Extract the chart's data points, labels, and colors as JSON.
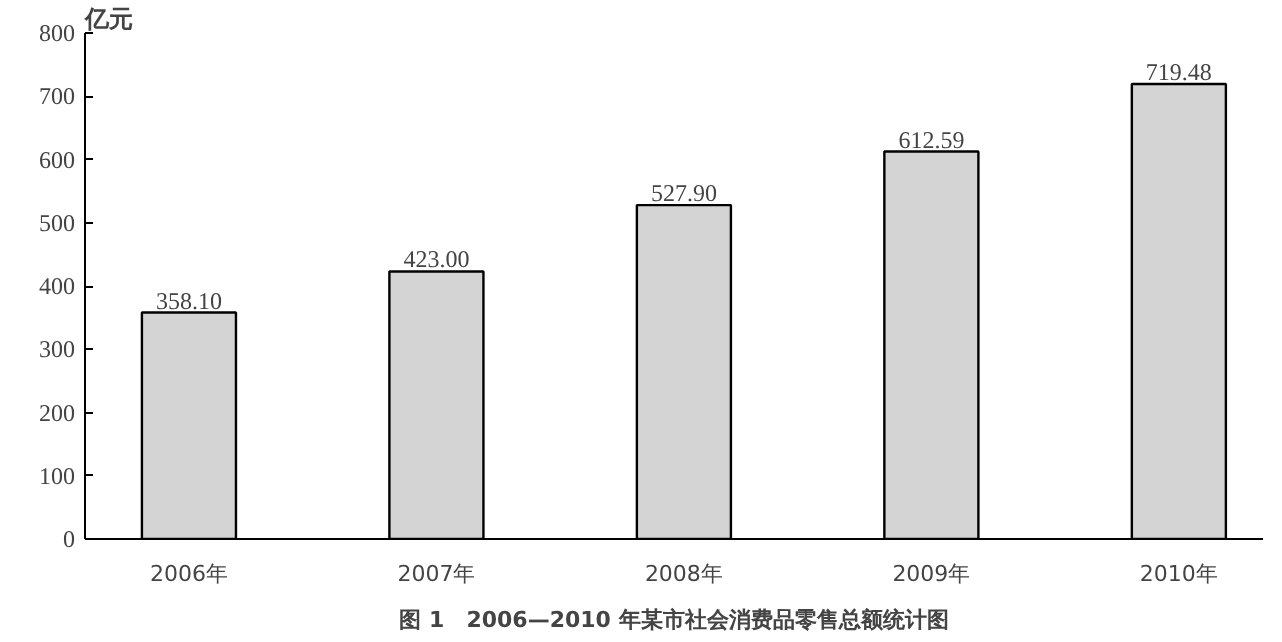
{
  "chart_data": {
    "type": "bar",
    "title": "图 1　2006—2010 年某市社会消费品零售总额统计图",
    "ylabel": "亿元",
    "categories": [
      "2006年",
      "2007年",
      "2008年",
      "2009年",
      "2010年"
    ],
    "values": [
      358.1,
      423.0,
      527.9,
      612.59,
      719.48
    ],
    "value_labels": [
      "358.10",
      "423.00",
      "527.90",
      "612.59",
      "719.48"
    ],
    "color": "#d4d4d4",
    "ylim": [
      0,
      800
    ],
    "yticks": [
      0,
      100,
      200,
      300,
      400,
      500,
      600,
      700,
      800
    ],
    "grid": false
  }
}
